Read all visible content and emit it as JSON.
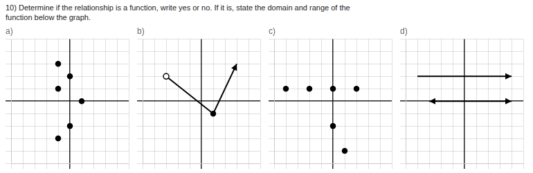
{
  "title": [
    "10) Determine if the relationship is a function, write yes or no. If it is, state the domain and range of the",
    "function below the graph."
  ],
  "chart_data": [
    {
      "type": "scatter",
      "title": "a)",
      "series": [
        {
          "type": "scatter",
          "marker": "circle",
          "color": "#000000",
          "x": [
            -1,
            0,
            -1,
            1,
            0,
            -1
          ],
          "values": [
            3,
            2,
            1,
            0,
            -2,
            -3
          ]
        }
      ],
      "xlim": [
        -5,
        5
      ],
      "ylim": [
        -5,
        5
      ],
      "xticks": [
        -5,
        -4,
        -3,
        -2,
        -1,
        0,
        1,
        2,
        3,
        4,
        5
      ],
      "yticks": [
        -5,
        -4,
        -3,
        -2,
        -1,
        0,
        1,
        2,
        3,
        4,
        5
      ],
      "grid": true,
      "tick_labels": false
    },
    {
      "type": "line",
      "title": "b)",
      "series": [
        {
          "type": "line",
          "marker": "arrow",
          "color": "#000000",
          "x": [
            -3,
            1,
            3
          ],
          "values": [
            2,
            -1,
            3
          ]
        },
        {
          "type": "scatter",
          "marker": "open_circle",
          "color": "#000000",
          "x": [
            -3
          ],
          "values": [
            2
          ]
        },
        {
          "type": "scatter",
          "marker": "circle",
          "color": "#000000",
          "x": [
            1
          ],
          "values": [
            -1
          ]
        }
      ],
      "xlim": [
        -5,
        5
      ],
      "ylim": [
        -5,
        5
      ],
      "xticks": [
        -5,
        -4,
        -3,
        -2,
        -1,
        0,
        1,
        2,
        3,
        4,
        5
      ],
      "yticks": [
        -5,
        -4,
        -3,
        -2,
        -1,
        0,
        1,
        2,
        3,
        4,
        5
      ],
      "grid": true,
      "tick_labels": false
    },
    {
      "type": "scatter",
      "title": "c)",
      "series": [
        {
          "type": "scatter",
          "marker": "circle",
          "color": "#000000",
          "x": [
            -4,
            -2,
            0,
            2,
            0,
            1
          ],
          "values": [
            1,
            1,
            1,
            1,
            -2,
            -4
          ]
        }
      ],
      "xlim": [
        -5,
        5
      ],
      "ylim": [
        -5,
        5
      ],
      "xticks": [
        -5,
        -4,
        -3,
        -2,
        -1,
        0,
        1,
        2,
        3,
        4,
        5
      ],
      "yticks": [
        -5,
        -4,
        -3,
        -2,
        -1,
        0,
        1,
        2,
        3,
        4,
        5
      ],
      "grid": true,
      "tick_labels": false
    },
    {
      "type": "line",
      "title": "d)",
      "series": [
        {
          "type": "line",
          "marker": "arrow",
          "color": "#000000",
          "x": [
            -4,
            4
          ],
          "values": [
            2,
            2
          ]
        },
        {
          "type": "line",
          "marker": "arrow",
          "color": "#000000",
          "x": [
            0,
            -3
          ],
          "values": [
            0,
            0
          ]
        },
        {
          "type": "line",
          "marker": "arrow",
          "color": "#000000",
          "x": [
            0,
            4
          ],
          "values": [
            0,
            0
          ]
        }
      ],
      "xlim": [
        -5,
        5
      ],
      "ylim": [
        -5,
        5
      ],
      "xticks": [
        -5,
        -4,
        -3,
        -2,
        -1,
        0,
        1,
        2,
        3,
        4,
        5
      ],
      "yticks": [
        -5,
        -4,
        -3,
        -2,
        -1,
        0,
        1,
        2,
        3,
        4,
        5
      ],
      "grid": true,
      "tick_labels": false
    }
  ]
}
